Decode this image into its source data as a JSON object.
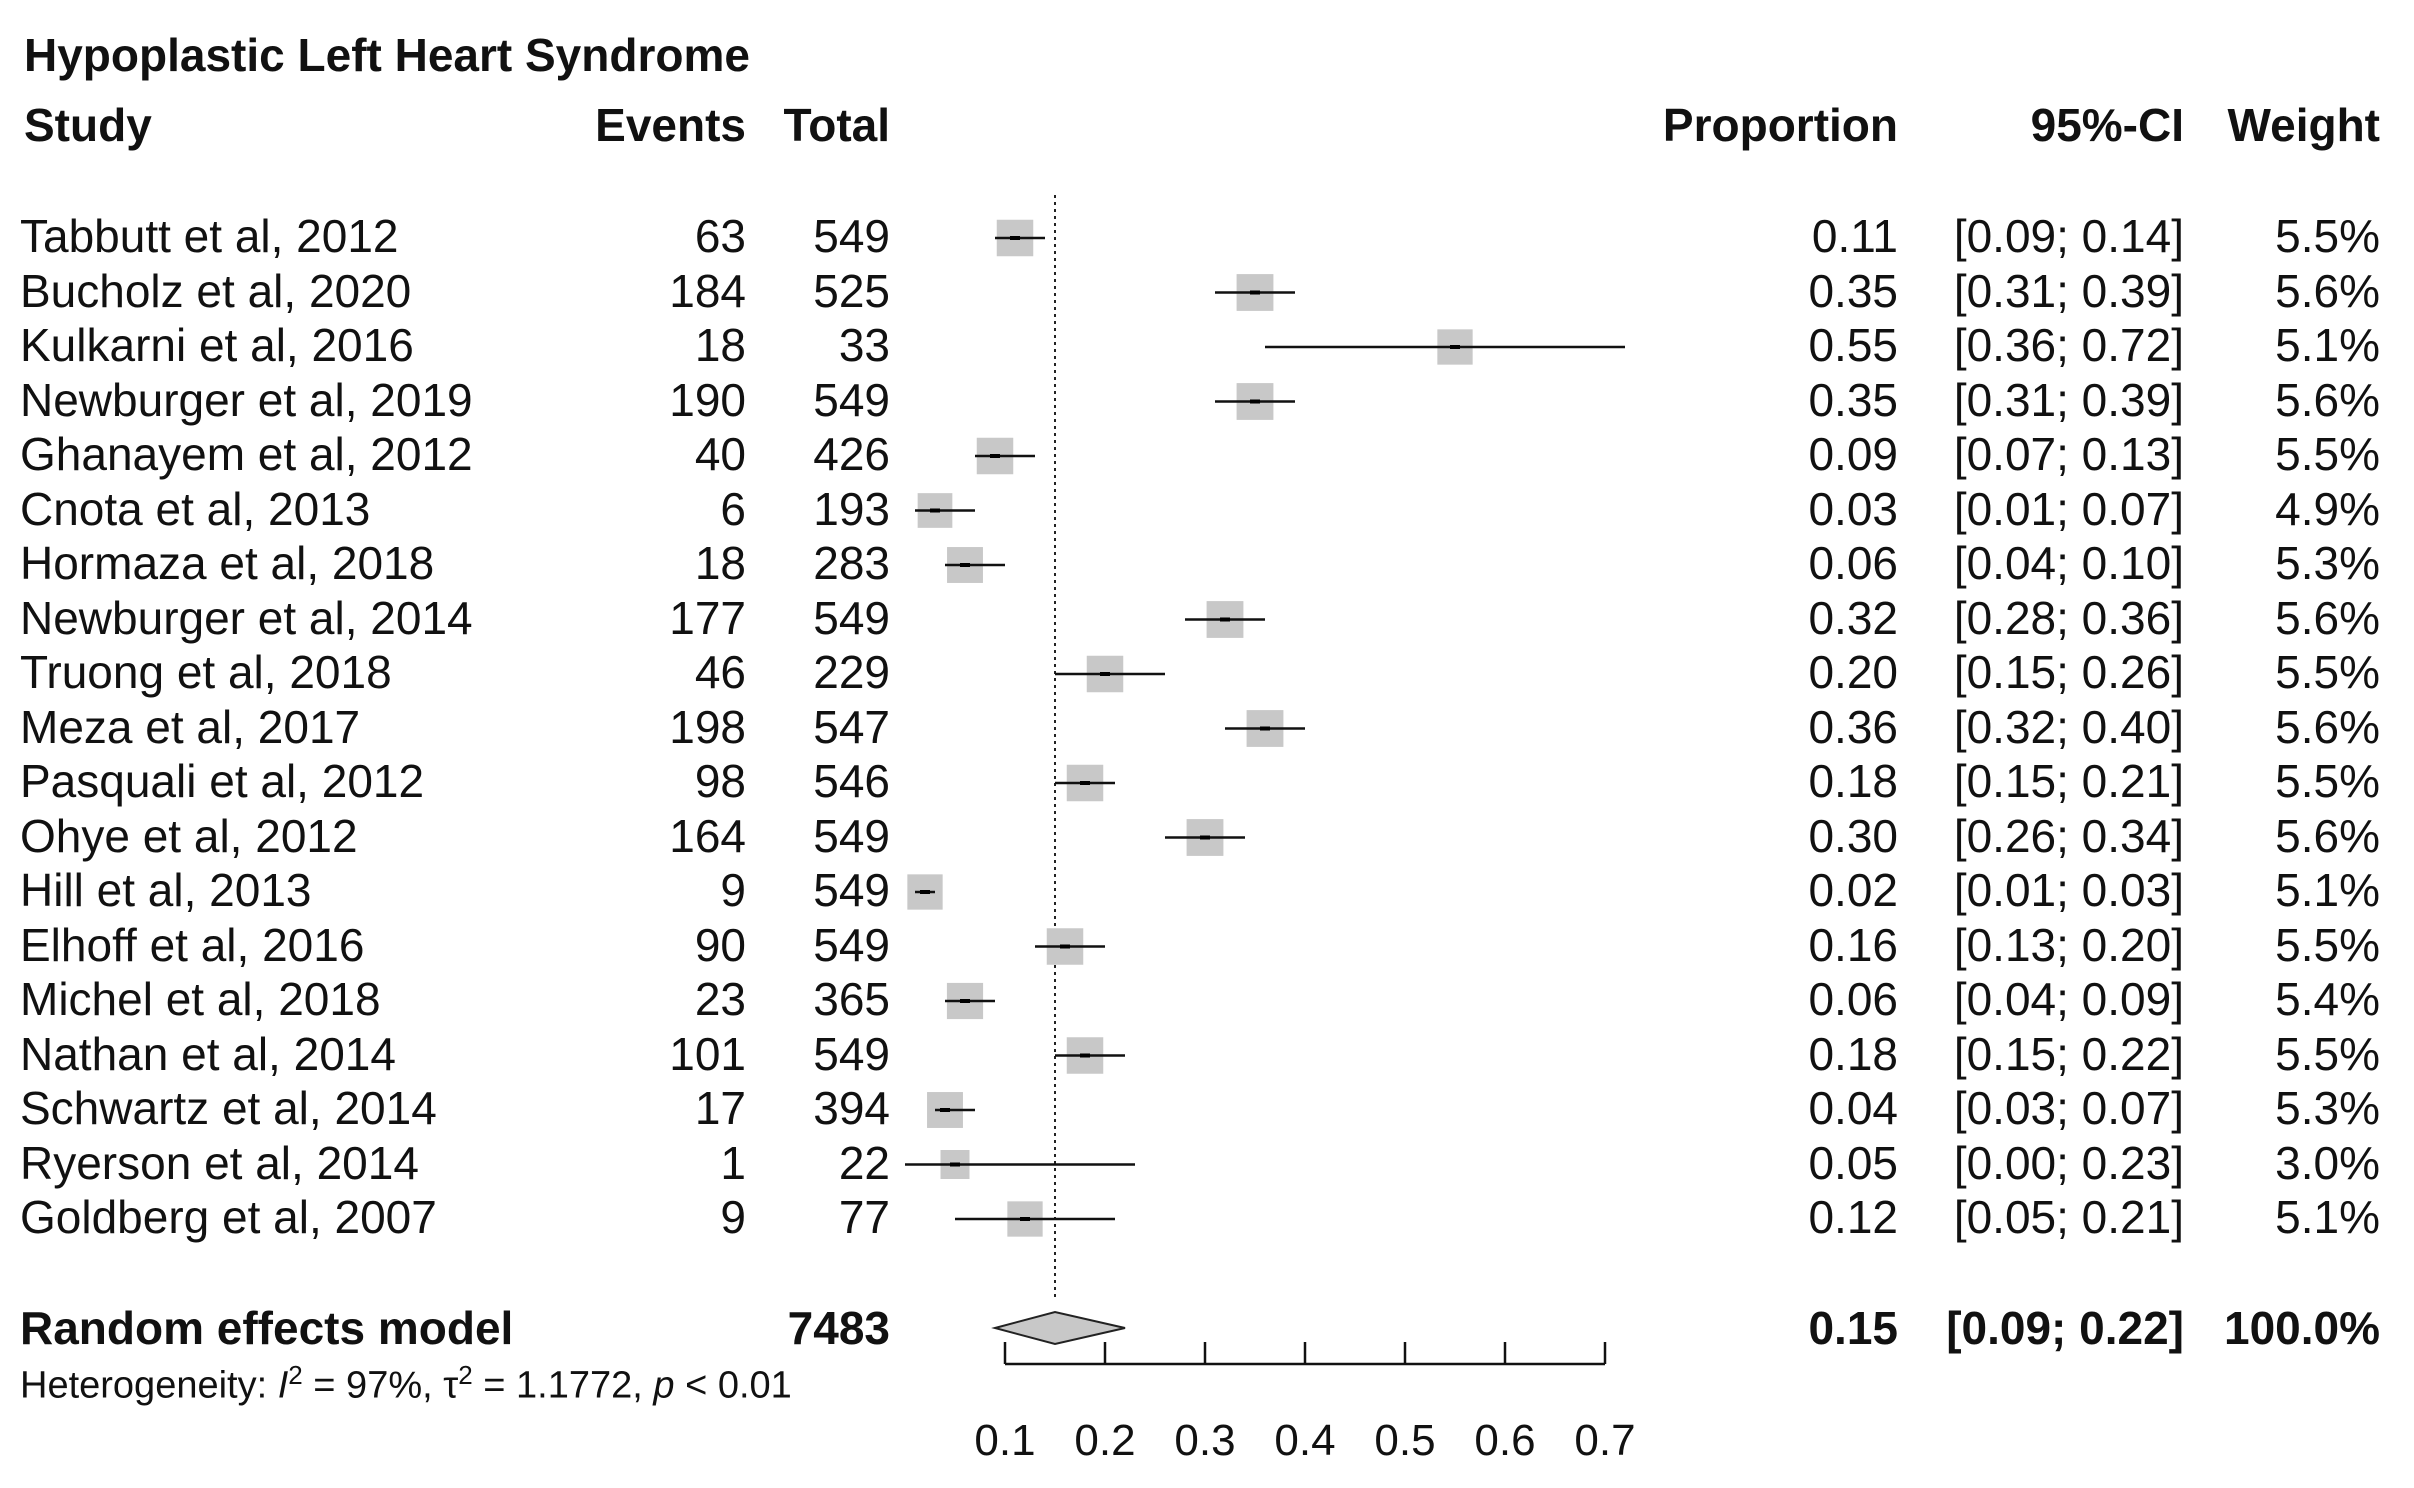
{
  "title": "Hypoplastic Left Heart Syndrome",
  "headers": {
    "study": "Study",
    "events": "Events",
    "total": "Total",
    "proportion": "Proportion",
    "ci": "95%-CI",
    "weight": "Weight"
  },
  "studies": [
    {
      "name": "Tabbutt et al, 2012",
      "events": "63",
      "total": "549",
      "proportion": "0.11",
      "ci": "[0.09; 0.14]",
      "weight": "5.5%"
    },
    {
      "name": "Bucholz et al, 2020",
      "events": "184",
      "total": "525",
      "proportion": "0.35",
      "ci": "[0.31; 0.39]",
      "weight": "5.6%"
    },
    {
      "name": "Kulkarni et al, 2016",
      "events": "18",
      "total": "33",
      "proportion": "0.55",
      "ci": "[0.36; 0.72]",
      "weight": "5.1%"
    },
    {
      "name": "Newburger et al, 2019",
      "events": "190",
      "total": "549",
      "proportion": "0.35",
      "ci": "[0.31; 0.39]",
      "weight": "5.6%"
    },
    {
      "name": "Ghanayem et al, 2012",
      "events": "40",
      "total": "426",
      "proportion": "0.09",
      "ci": "[0.07; 0.13]",
      "weight": "5.5%"
    },
    {
      "name": "Cnota et al, 2013",
      "events": "6",
      "total": "193",
      "proportion": "0.03",
      "ci": "[0.01; 0.07]",
      "weight": "4.9%"
    },
    {
      "name": "Hormaza et al, 2018",
      "events": "18",
      "total": "283",
      "proportion": "0.06",
      "ci": "[0.04; 0.10]",
      "weight": "5.3%"
    },
    {
      "name": "Newburger et al, 2014",
      "events": "177",
      "total": "549",
      "proportion": "0.32",
      "ci": "[0.28; 0.36]",
      "weight": "5.6%"
    },
    {
      "name": "Truong et al, 2018",
      "events": "46",
      "total": "229",
      "proportion": "0.20",
      "ci": "[0.15; 0.26]",
      "weight": "5.5%"
    },
    {
      "name": "Meza et al, 2017",
      "events": "198",
      "total": "547",
      "proportion": "0.36",
      "ci": "[0.32; 0.40]",
      "weight": "5.6%"
    },
    {
      "name": "Pasquali et al, 2012",
      "events": "98",
      "total": "546",
      "proportion": "0.18",
      "ci": "[0.15; 0.21]",
      "weight": "5.5%"
    },
    {
      "name": "Ohye et al, 2012",
      "events": "164",
      "total": "549",
      "proportion": "0.30",
      "ci": "[0.26; 0.34]",
      "weight": "5.6%"
    },
    {
      "name": "Hill et al, 2013",
      "events": "9",
      "total": "549",
      "proportion": "0.02",
      "ci": "[0.01; 0.03]",
      "weight": "5.1%"
    },
    {
      "name": "Elhoff et al, 2016",
      "events": "90",
      "total": "549",
      "proportion": "0.16",
      "ci": "[0.13; 0.20]",
      "weight": "5.5%"
    },
    {
      "name": "Michel et al, 2018",
      "events": "23",
      "total": "365",
      "proportion": "0.06",
      "ci": "[0.04; 0.09]",
      "weight": "5.4%"
    },
    {
      "name": "Nathan et al, 2014",
      "events": "101",
      "total": "549",
      "proportion": "0.18",
      "ci": "[0.15; 0.22]",
      "weight": "5.5%"
    },
    {
      "name": "Schwartz et al, 2014",
      "events": "17",
      "total": "394",
      "proportion": "0.04",
      "ci": "[0.03; 0.07]",
      "weight": "5.3%"
    },
    {
      "name": "Ryerson et al, 2014",
      "events": "1",
      "total": "22",
      "proportion": "0.05",
      "ci": "[0.00; 0.23]",
      "weight": "3.0%"
    },
    {
      "name": "Goldberg et al, 2007",
      "events": "9",
      "total": "77",
      "proportion": "0.12",
      "ci": "[0.05; 0.21]",
      "weight": "5.1%"
    }
  ],
  "pooled": {
    "label": "Random effects model",
    "total": "7483",
    "proportion": "0.15",
    "ci": "[0.09; 0.22]",
    "weight": "100.0%"
  },
  "heterogeneity": {
    "prefix": "Heterogeneity: ",
    "i2_symbol": "I",
    "i2_value": " = 97%, ",
    "tau2_symbol": "τ",
    "tau2_value": " = 1.1772, ",
    "p_symbol": "p",
    "p_value": " < 0.01"
  },
  "chart_data": {
    "type": "forest",
    "title": "Hypoplastic Left Heart Syndrome",
    "x_ticks": [
      0.1,
      0.2,
      0.3,
      0.4,
      0.5,
      0.6,
      0.7
    ],
    "x_tick_labels": [
      "0.1",
      "0.2",
      "0.3",
      "0.4",
      "0.5",
      "0.6",
      "0.7"
    ],
    "xlim": [
      0.1,
      0.7
    ],
    "reference_line": 0.15,
    "series": [
      {
        "name": "Tabbutt et al, 2012",
        "estimate": 0.11,
        "lower": 0.09,
        "upper": 0.14,
        "weight": 5.5
      },
      {
        "name": "Bucholz et al, 2020",
        "estimate": 0.35,
        "lower": 0.31,
        "upper": 0.39,
        "weight": 5.6
      },
      {
        "name": "Kulkarni et al, 2016",
        "estimate": 0.55,
        "lower": 0.36,
        "upper": 0.72,
        "weight": 5.1
      },
      {
        "name": "Newburger et al, 2019",
        "estimate": 0.35,
        "lower": 0.31,
        "upper": 0.39,
        "weight": 5.6
      },
      {
        "name": "Ghanayem et al, 2012",
        "estimate": 0.09,
        "lower": 0.07,
        "upper": 0.13,
        "weight": 5.5
      },
      {
        "name": "Cnota et al, 2013",
        "estimate": 0.03,
        "lower": 0.01,
        "upper": 0.07,
        "weight": 4.9
      },
      {
        "name": "Hormaza et al, 2018",
        "estimate": 0.06,
        "lower": 0.04,
        "upper": 0.1,
        "weight": 5.3
      },
      {
        "name": "Newburger et al, 2014",
        "estimate": 0.32,
        "lower": 0.28,
        "upper": 0.36,
        "weight": 5.6
      },
      {
        "name": "Truong et al, 2018",
        "estimate": 0.2,
        "lower": 0.15,
        "upper": 0.26,
        "weight": 5.5
      },
      {
        "name": "Meza et al, 2017",
        "estimate": 0.36,
        "lower": 0.32,
        "upper": 0.4,
        "weight": 5.6
      },
      {
        "name": "Pasquali et al, 2012",
        "estimate": 0.18,
        "lower": 0.15,
        "upper": 0.21,
        "weight": 5.5
      },
      {
        "name": "Ohye et al, 2012",
        "estimate": 0.3,
        "lower": 0.26,
        "upper": 0.34,
        "weight": 5.6
      },
      {
        "name": "Hill et al, 2013",
        "estimate": 0.02,
        "lower": 0.01,
        "upper": 0.03,
        "weight": 5.1
      },
      {
        "name": "Elhoff et al, 2016",
        "estimate": 0.16,
        "lower": 0.13,
        "upper": 0.2,
        "weight": 5.5
      },
      {
        "name": "Michel et al, 2018",
        "estimate": 0.06,
        "lower": 0.04,
        "upper": 0.09,
        "weight": 5.4
      },
      {
        "name": "Nathan et al, 2014",
        "estimate": 0.18,
        "lower": 0.15,
        "upper": 0.22,
        "weight": 5.5
      },
      {
        "name": "Schwartz et al, 2014",
        "estimate": 0.04,
        "lower": 0.03,
        "upper": 0.07,
        "weight": 5.3
      },
      {
        "name": "Ryerson et al, 2014",
        "estimate": 0.05,
        "lower": 0.0,
        "upper": 0.23,
        "weight": 3.0
      },
      {
        "name": "Goldberg et al, 2007",
        "estimate": 0.12,
        "lower": 0.05,
        "upper": 0.21,
        "weight": 5.1
      }
    ],
    "pooled": {
      "name": "Random effects model",
      "estimate": 0.15,
      "lower": 0.09,
      "upper": 0.22,
      "weight": 100.0
    }
  }
}
